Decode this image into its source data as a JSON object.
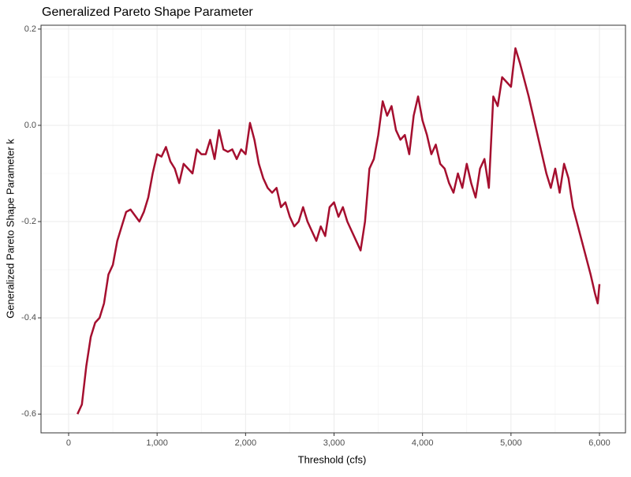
{
  "chart_data": {
    "type": "line",
    "title": "Generalized Pareto Shape Parameter",
    "xlabel": "Threshold (cfs)",
    "ylabel": "Generalized Pareto Shape Parameter k",
    "x": [
      100,
      150,
      200,
      250,
      300,
      350,
      400,
      450,
      500,
      550,
      600,
      650,
      700,
      800,
      850,
      900,
      950,
      1000,
      1050,
      1100,
      1150,
      1200,
      1250,
      1300,
      1350,
      1400,
      1450,
      1500,
      1550,
      1600,
      1650,
      1700,
      1750,
      1800,
      1850,
      1900,
      1950,
      2000,
      2050,
      2100,
      2150,
      2200,
      2250,
      2300,
      2350,
      2400,
      2450,
      2500,
      2550,
      2600,
      2650,
      2700,
      2750,
      2800,
      2850,
      2900,
      2950,
      3000,
      3050,
      3100,
      3150,
      3200,
      3250,
      3300,
      3350,
      3400,
      3450,
      3500,
      3550,
      3600,
      3650,
      3700,
      3750,
      3800,
      3850,
      3900,
      3950,
      4000,
      4050,
      4100,
      4150,
      4200,
      4250,
      4300,
      4350,
      4400,
      4450,
      4500,
      4550,
      4600,
      4650,
      4700,
      4750,
      4800,
      4850,
      4900,
      4950,
      5000,
      5050,
      5100,
      5200,
      5300,
      5400,
      5450,
      5500,
      5550,
      5600,
      5650,
      5700,
      5800,
      5900,
      5950,
      5980,
      6000
    ],
    "series": [
      {
        "color": "#a50f2f",
        "values": [
          -0.6,
          -0.58,
          -0.5,
          -0.44,
          -0.41,
          -0.4,
          -0.37,
          -0.31,
          -0.29,
          -0.24,
          -0.21,
          -0.18,
          -0.175,
          -0.2,
          -0.18,
          -0.15,
          -0.1,
          -0.06,
          -0.065,
          -0.045,
          -0.075,
          -0.09,
          -0.12,
          -0.08,
          -0.09,
          -0.1,
          -0.05,
          -0.06,
          -0.06,
          -0.03,
          -0.07,
          -0.01,
          -0.05,
          -0.055,
          -0.05,
          -0.07,
          -0.05,
          -0.06,
          0.005,
          -0.03,
          -0.08,
          -0.11,
          -0.13,
          -0.14,
          -0.13,
          -0.17,
          -0.16,
          -0.19,
          -0.21,
          -0.2,
          -0.17,
          -0.2,
          -0.22,
          -0.24,
          -0.21,
          -0.23,
          -0.17,
          -0.16,
          -0.19,
          -0.17,
          -0.2,
          -0.22,
          -0.24,
          -0.26,
          -0.2,
          -0.09,
          -0.07,
          -0.02,
          0.05,
          0.02,
          0.04,
          -0.01,
          -0.03,
          -0.02,
          -0.06,
          0.02,
          0.06,
          0.01,
          -0.02,
          -0.06,
          -0.04,
          -0.08,
          -0.09,
          -0.12,
          -0.14,
          -0.1,
          -0.13,
          -0.08,
          -0.12,
          -0.15,
          -0.09,
          -0.07,
          -0.13,
          0.06,
          0.04,
          0.1,
          0.09,
          0.08,
          0.16,
          0.13,
          0.06,
          -0.02,
          -0.1,
          -0.13,
          -0.09,
          -0.14,
          -0.08,
          -0.11,
          -0.17,
          -0.24,
          -0.31,
          -0.35,
          -0.37,
          -0.33
        ]
      }
    ],
    "xlim": [
      -312,
      6294
    ],
    "ylim": [
      -0.639,
      0.208
    ],
    "xticks": [
      0,
      {
        "value": 1000,
        "label": "1,000"
      },
      {
        "value": 2000,
        "label": "2,000"
      },
      {
        "value": 3000,
        "label": "3,000"
      },
      {
        "value": 4000,
        "label": "4,000"
      },
      {
        "value": 5000,
        "label": "5,000"
      },
      {
        "value": 6000,
        "label": "6,000"
      }
    ],
    "yticks": [
      -0.6,
      -0.4,
      -0.2,
      {
        "value": 0,
        "label": "0.0"
      },
      0.2
    ],
    "grid": true
  }
}
